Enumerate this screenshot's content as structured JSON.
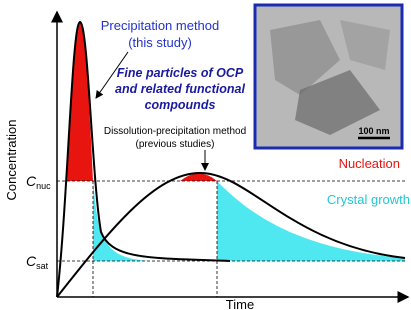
{
  "labels": {
    "precipitation_method": "Precipitation method",
    "this_study": "(this study)",
    "fine_particles": [
      "Fine particles of OCP",
      "and related functional",
      "compounds"
    ],
    "dissolution_method": "Dissolution-precipitation method",
    "previous_studies": "(previous studies)",
    "nucleation": "Nucleation",
    "crystal_growth": "Crystal growth",
    "y_axis": "Concentration",
    "x_axis": "Time",
    "c_nuc": {
      "symbol": "C",
      "subscript": "nuc"
    },
    "c_sat": {
      "symbol": "C",
      "subscript": "sat"
    },
    "scale_bar": "100 nm"
  }
}
